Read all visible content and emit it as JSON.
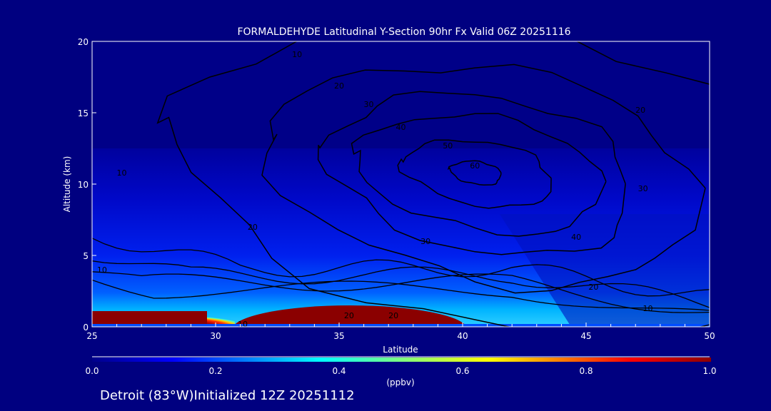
{
  "chart_data": {
    "type": "heatmap",
    "title": "FORMALDEHYDE Latitudinal Y-Section 90hr  Fx Valid 06Z 20251116",
    "xlabel": "Latitude",
    "ylabel": "Altitude (km)",
    "xlim": [
      25,
      50
    ],
    "ylim": [
      0,
      20
    ],
    "xticks": [
      "25",
      "30",
      "35",
      "40",
      "45",
      "50"
    ],
    "yticks": [
      "0",
      "5",
      "10",
      "15",
      "20"
    ],
    "colorbar": {
      "ticks": [
        "0.0",
        "0.2",
        "0.4",
        "0.6",
        "0.8",
        "1.0"
      ],
      "units": "(ppbv)",
      "range": [
        0,
        1
      ]
    },
    "contour_levels": [
      10,
      20,
      30,
      40,
      50,
      60
    ],
    "contour_labels": [
      {
        "text": "10",
        "lat": 26.2,
        "alt": 10.8
      },
      {
        "text": "10",
        "lat": 33.3,
        "alt": 19.1
      },
      {
        "text": "20",
        "lat": 35.0,
        "alt": 16.9
      },
      {
        "text": "30",
        "lat": 36.2,
        "alt": 15.6
      },
      {
        "text": "40",
        "lat": 37.5,
        "alt": 14.0
      },
      {
        "text": "50",
        "lat": 39.4,
        "alt": 12.7
      },
      {
        "text": "60",
        "lat": 40.5,
        "alt": 11.3
      },
      {
        "text": "20",
        "lat": 47.2,
        "alt": 15.2
      },
      {
        "text": "30",
        "lat": 47.3,
        "alt": 9.7
      },
      {
        "text": "40",
        "lat": 44.6,
        "alt": 6.3
      },
      {
        "text": "30",
        "lat": 38.5,
        "alt": 6.0
      },
      {
        "text": "20",
        "lat": 31.5,
        "alt": 7.0
      },
      {
        "text": "20",
        "lat": 45.3,
        "alt": 2.8
      },
      {
        "text": "10",
        "lat": 47.5,
        "alt": 1.3
      },
      {
        "text": "10",
        "lat": 25.4,
        "alt": 4.0
      },
      {
        "text": "20",
        "lat": 35.4,
        "alt": 0.8
      },
      {
        "text": "20",
        "lat": 37.2,
        "alt": 0.8
      },
      {
        "text": "10",
        "lat": 31.1,
        "alt": 0.2
      }
    ],
    "max_center": {
      "lat": 40.5,
      "alt": 10.8,
      "value": 60
    }
  },
  "footer": "Detroit (83°W)Initialized 12Z 20251112"
}
